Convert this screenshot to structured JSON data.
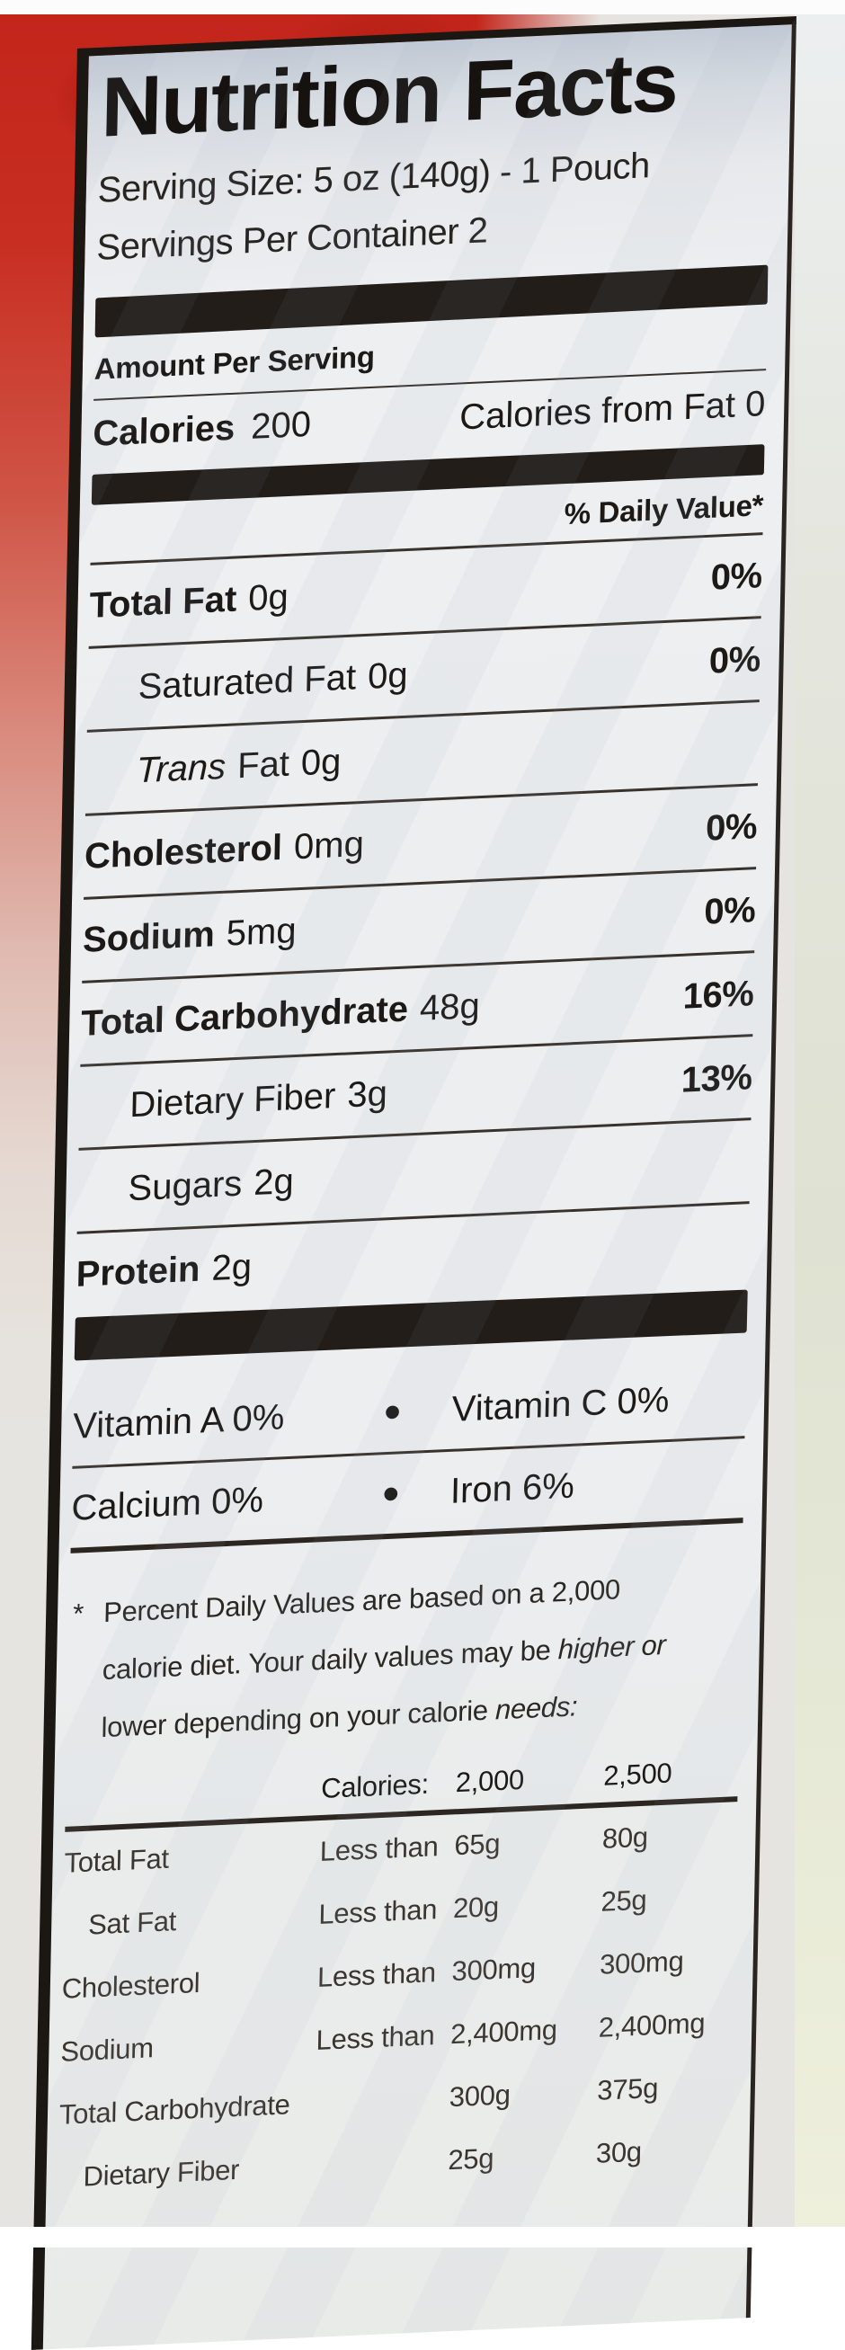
{
  "colors": {
    "pouch-red": "#c3251b",
    "label-bg": "#eceef0",
    "ink": "#1c1916"
  },
  "label": {
    "title": "Nutrition Facts",
    "serving_size": "Serving Size: 5 oz (140g) - 1 Pouch",
    "servings_per_container": "Servings Per Container 2",
    "amount_per_serving": "Amount Per Serving",
    "calories": {
      "label": "Calories",
      "value": "200",
      "from_fat": "Calories from Fat 0"
    },
    "daily_value_header": "% Daily Value*",
    "nutrients": [
      {
        "name": "Total Fat",
        "amount": "0g",
        "dv": "0%"
      },
      {
        "name": "Saturated Fat",
        "amount": "0g",
        "dv": "0%"
      },
      {
        "name_italic": "Trans",
        "name": "Fat",
        "amount": "0g",
        "dv": ""
      },
      {
        "name": "Cholesterol",
        "amount": "0mg",
        "dv": "0%"
      },
      {
        "name": "Sodium",
        "amount": "5mg",
        "dv": "0%"
      },
      {
        "name": "Total Carbohydrate",
        "amount": "48g",
        "dv": "16%"
      },
      {
        "name": "Dietary Fiber",
        "amount": "3g",
        "dv": "13%"
      },
      {
        "name": "Sugars",
        "amount": "2g",
        "dv": ""
      },
      {
        "name": "Protein",
        "amount": "2g",
        "dv": ""
      }
    ],
    "micronutrients": [
      {
        "left": "Vitamin A 0%",
        "bullet": "•",
        "right": "Vitamin C 0%"
      },
      {
        "left": "Calcium 0%",
        "bullet": "•",
        "right": "Iron 6%"
      }
    ],
    "footnote": {
      "asterisk": "*",
      "line1": "Percent Daily Values are based on a 2,000",
      "line2_a": "calorie diet. Your daily values may be ",
      "line2_b": "higher or",
      "line3_a": "lower depending on your calorie ",
      "line3_b": "needs:"
    },
    "dv_table": {
      "header": {
        "calories_label": "Calories:",
        "col_2000": "2,000",
        "col_2500": "2,500"
      },
      "rows": [
        {
          "name": "Total Fat",
          "qualifier": "Less than",
          "v2000": "65g",
          "v2500": "80g"
        },
        {
          "name": "Sat Fat",
          "qualifier": "Less than",
          "v2000": "20g",
          "v2500": "25g"
        },
        {
          "name": "Cholesterol",
          "qualifier": "Less than",
          "v2000": "300mg",
          "v2500": "300mg"
        },
        {
          "name": "Sodium",
          "qualifier": "Less than",
          "v2000": "2,400mg",
          "v2500": "2,400mg"
        },
        {
          "name": "Total Carbohydrate",
          "qualifier": "",
          "v2000": "300g",
          "v2500": "375g"
        },
        {
          "name": "Dietary Fiber",
          "qualifier": "",
          "v2000": "25g",
          "v2500": "30g"
        }
      ]
    }
  }
}
